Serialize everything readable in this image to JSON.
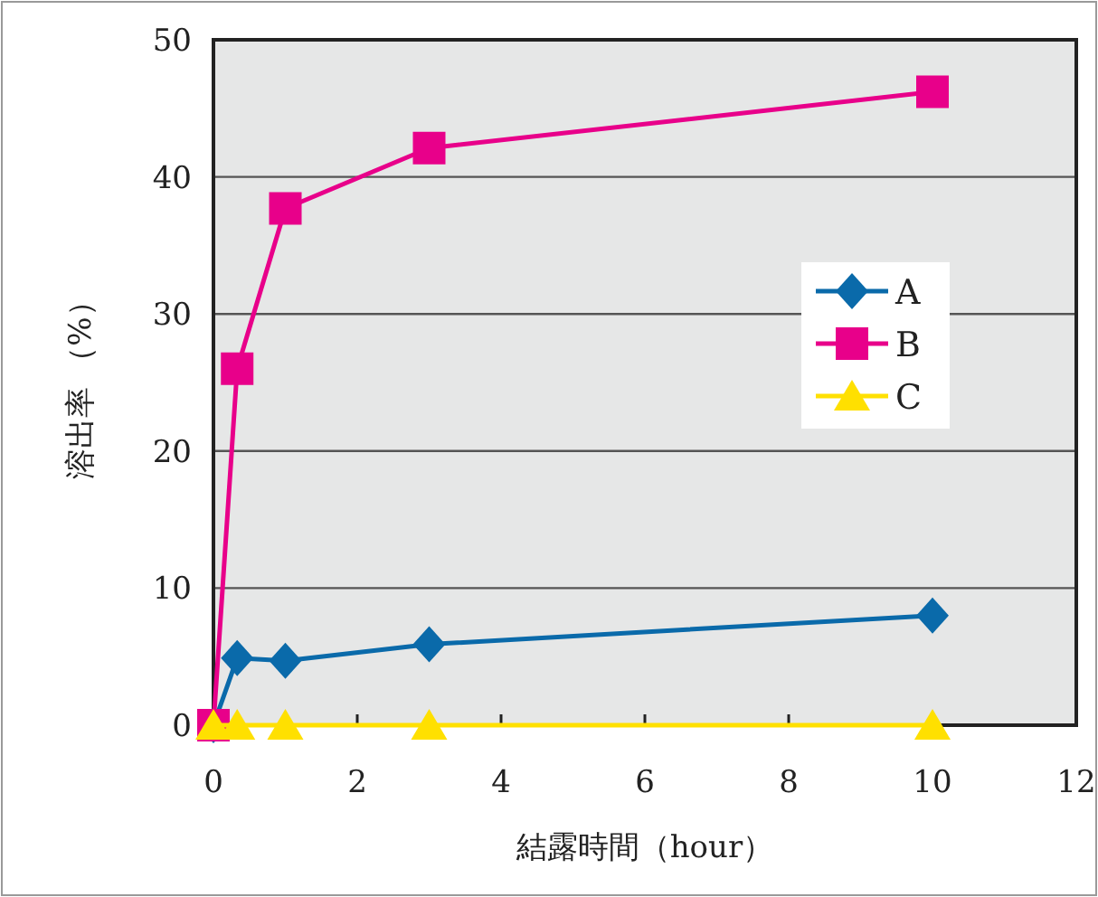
{
  "chart_data": {
    "type": "line",
    "xlabel": "結露時間（hour）",
    "ylabel": "溶出率 （%）",
    "xlim": [
      0,
      12
    ],
    "xticks": [
      0,
      2,
      4,
      6,
      8,
      10,
      12
    ],
    "ylim": [
      0,
      50
    ],
    "yticks": [
      0,
      10,
      20,
      30,
      40,
      50
    ],
    "grid": "y",
    "legend": "right",
    "series": [
      {
        "name": "A",
        "color": "#0a6aaa",
        "marker": "diamond",
        "x": [
          0,
          0.33,
          1,
          3,
          10
        ],
        "values": [
          0,
          4.9,
          4.7,
          5.9,
          8
        ]
      },
      {
        "name": "B",
        "color": "#e8008a",
        "marker": "square",
        "x": [
          0,
          0.33,
          1,
          3,
          10
        ],
        "values": [
          0,
          26,
          37.7,
          42.1,
          46.2
        ]
      },
      {
        "name": "C",
        "color": "#ffe000",
        "marker": "triangle",
        "x": [
          0,
          0.33,
          1,
          3,
          10
        ],
        "values": [
          0,
          0,
          0,
          0,
          0
        ]
      }
    ]
  }
}
